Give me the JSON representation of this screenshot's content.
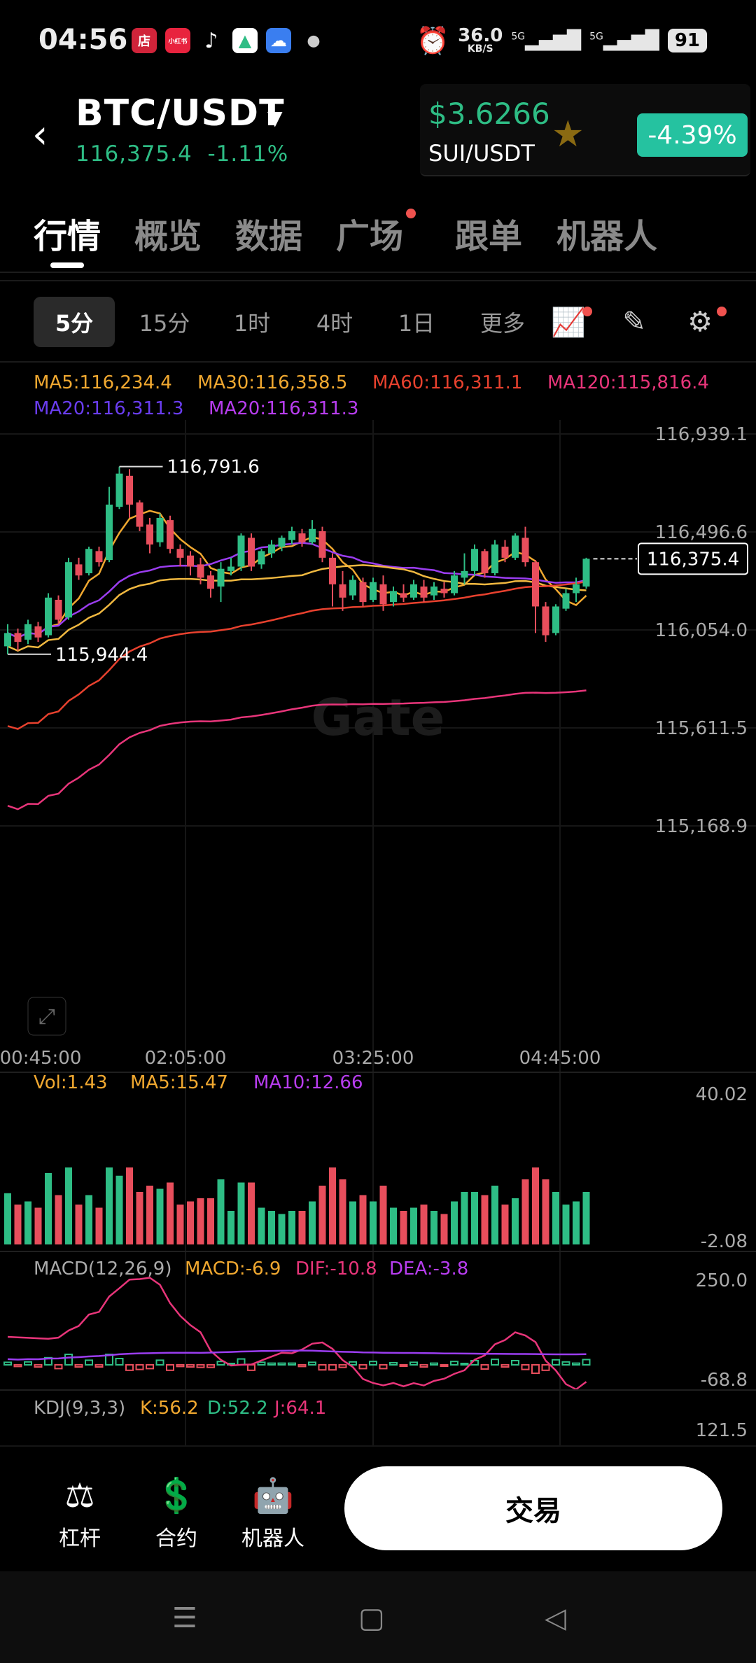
{
  "status_bar": {
    "time": "04:56",
    "net_speed": "36.0",
    "net_unit": "KB/S",
    "sim1": "5G",
    "sim2": "5G",
    "battery": "91",
    "app_icons": [
      "店",
      "小红书",
      "tiktok",
      "mountain",
      "cloud"
    ]
  },
  "header": {
    "pair": "BTC/USDT",
    "last_price": "116,375.4",
    "change": "-1.11%",
    "mini_price": "$3.6266",
    "mini_pair": "SUI/USDT",
    "mini_change": "-4.39%"
  },
  "tabs": [
    "行情",
    "概览",
    "数据",
    "广场",
    "跟单",
    "机器人"
  ],
  "intervals": [
    "5分",
    "15分",
    "1时",
    "4时",
    "1日",
    "更多"
  ],
  "ma_legend": {
    "ma5": "MA5:116,234.4",
    "ma30": "MA30:116,358.5",
    "ma60": "MA60:116,311.1",
    "ma120": "MA120:115,816.4",
    "ma20a": "MA20:116,311.3",
    "ma20b": "MA20:116,311.3"
  },
  "vol_legend": {
    "vol": "Vol:1.43",
    "ma5": "MA5:15.47",
    "ma10": "MA10:12.66"
  },
  "macd_legend": {
    "title": "MACD(12,26,9)",
    "macd": "MACD:-6.9",
    "dif": "DIF:-10.8",
    "dea": "DEA:-3.8"
  },
  "kdj_legend": {
    "title": "KDJ(9,3,3)",
    "k": "K:56.2",
    "d": "D:52.2",
    "j": "J:64.1"
  },
  "colors": {
    "up": "#2ebd85",
    "down": "#e84e5c",
    "ma5": "#f0a830",
    "ma20": "#9b3df0",
    "ma60": "#e8412e",
    "ma120": "#e8357a"
  },
  "chart_data": {
    "type": "candlestick",
    "interval": "5分",
    "price_axis": {
      "ticks": [
        116939.1,
        116496.6,
        116054.0,
        115611.5,
        115168.9
      ],
      "labels": [
        "116,939.1",
        "116,496.6",
        "116,054.0",
        "115,611.5",
        "115,168.9"
      ]
    },
    "time_axis": [
      "00:45:00",
      "02:05:00",
      "03:25:00",
      "04:45:00"
    ],
    "high_mark": "116,791.6",
    "low_mark": "115,944.4",
    "current_price": "116,375.4",
    "candles": [
      [
        115980,
        116040,
        115944,
        116080
      ],
      [
        116040,
        116000,
        115960,
        116060
      ],
      [
        116010,
        116080,
        115990,
        116100
      ],
      [
        116070,
        116020,
        116000,
        116090
      ],
      [
        116030,
        116200,
        116020,
        116220
      ],
      [
        116190,
        116100,
        116080,
        116210
      ],
      [
        116110,
        116360,
        116100,
        116380
      ],
      [
        116350,
        116300,
        116280,
        116380
      ],
      [
        116310,
        116420,
        116300,
        116430
      ],
      [
        116410,
        116360,
        116340,
        116430
      ],
      [
        116370,
        116620,
        116360,
        116700
      ],
      [
        116610,
        116760,
        116600,
        116791.6
      ],
      [
        116750,
        116620,
        116560,
        116780
      ],
      [
        116630,
        116520,
        116500,
        116640
      ],
      [
        116530,
        116440,
        116400,
        116560
      ],
      [
        116450,
        116560,
        116430,
        116580
      ],
      [
        116550,
        116420,
        116400,
        116570
      ],
      [
        116420,
        116380,
        116340,
        116440
      ],
      [
        116390,
        116340,
        116300,
        116410
      ],
      [
        116350,
        116290,
        116260,
        116380
      ],
      [
        116300,
        116240,
        116200,
        116320
      ],
      [
        116250,
        116330,
        116180,
        116360
      ],
      [
        116320,
        116340,
        116300,
        116380
      ],
      [
        116340,
        116480,
        116320,
        116490
      ],
      [
        116470,
        116340,
        116320,
        116490
      ],
      [
        116350,
        116410,
        116330,
        116420
      ],
      [
        116400,
        116440,
        116380,
        116460
      ],
      [
        116430,
        116470,
        116410,
        116480
      ],
      [
        116460,
        116500,
        116440,
        116520
      ],
      [
        116490,
        116450,
        116430,
        116510
      ],
      [
        116450,
        116510,
        116440,
        116550
      ],
      [
        116500,
        116380,
        116360,
        116520
      ],
      [
        116380,
        116260,
        116160,
        116400
      ],
      [
        116260,
        116200,
        116140,
        116320
      ],
      [
        116210,
        116280,
        116190,
        116300
      ],
      [
        116270,
        116180,
        116160,
        116290
      ],
      [
        116190,
        116270,
        116180,
        116290
      ],
      [
        116260,
        116170,
        116140,
        116300
      ],
      [
        116180,
        116230,
        116160,
        116250
      ],
      [
        116220,
        116200,
        116180,
        116260
      ],
      [
        116200,
        116260,
        116190,
        116280
      ],
      [
        116250,
        116200,
        116180,
        116280
      ],
      [
        116210,
        116250,
        116190,
        116270
      ],
      [
        116240,
        116220,
        116200,
        116270
      ],
      [
        116220,
        116300,
        116210,
        116320
      ],
      [
        116290,
        116320,
        116260,
        116400
      ],
      [
        116320,
        116420,
        116300,
        116440
      ],
      [
        116410,
        116310,
        116290,
        116420
      ],
      [
        116310,
        116440,
        116300,
        116460
      ],
      [
        116430,
        116380,
        116360,
        116460
      ],
      [
        116380,
        116480,
        116370,
        116490
      ],
      [
        116470,
        116360,
        116340,
        116520
      ],
      [
        116360,
        116160,
        116040,
        116370
      ],
      [
        116160,
        116030,
        116000,
        116180
      ],
      [
        116040,
        116160,
        116030,
        116170
      ],
      [
        116150,
        116220,
        116140,
        116240
      ],
      [
        116220,
        116260,
        116180,
        116290
      ],
      [
        116250,
        116375.4,
        116240,
        116380
      ]
    ],
    "volume_axis": [
      "40.02",
      "-2.08"
    ],
    "macd_axis": [
      "250.0",
      "-68.8"
    ],
    "kdj_axis": [
      "121.5"
    ]
  },
  "bottom_bar": {
    "items": [
      "杠杆",
      "合约",
      "机器人"
    ],
    "trade_label": "交易"
  }
}
